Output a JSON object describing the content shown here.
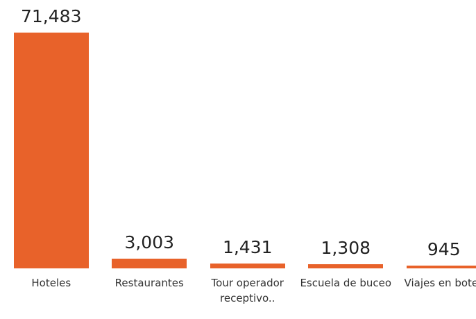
{
  "chart_data": {
    "type": "bar",
    "categories": [
      "Hoteles",
      "Restaurantes",
      "Tour operador receptivo..",
      "Escuela de buceo",
      "Viajes en botes"
    ],
    "values": [
      71483,
      3003,
      1431,
      1308,
      945
    ],
    "value_labels": [
      "71,483",
      "3,003",
      "1,431",
      "1,308",
      "945"
    ],
    "color": "#e8622a"
  }
}
